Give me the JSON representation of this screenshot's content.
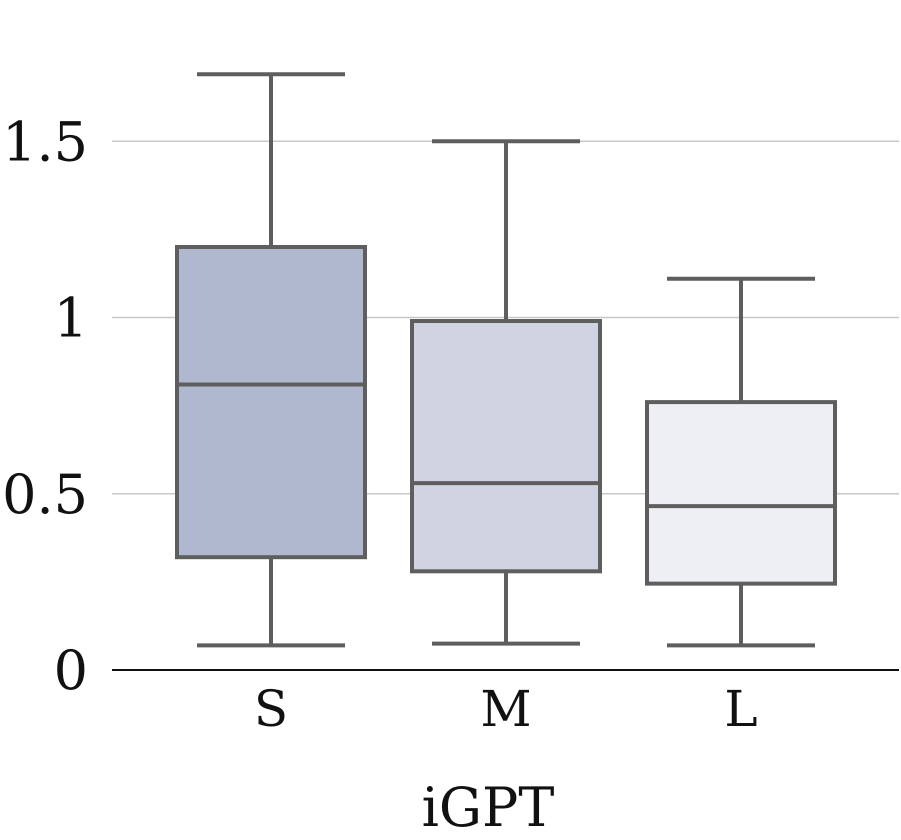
{
  "chart_data": {
    "type": "box",
    "title": "",
    "xlabel": "iGPT",
    "ylabel": "",
    "ylim": [
      0,
      1.8
    ],
    "yticks": [
      0,
      0.5,
      1,
      1.5
    ],
    "ytick_labels": [
      "0",
      "0.5",
      "1",
      "1.5"
    ],
    "grid": true,
    "categories": [
      "S",
      "M",
      "L"
    ],
    "boxes": [
      {
        "category": "S",
        "whisker_low": 0.07,
        "q1": 0.32,
        "median": 0.81,
        "q3": 1.2,
        "whisker_high": 1.69,
        "color": "#afb8cf"
      },
      {
        "category": "M",
        "whisker_low": 0.075,
        "q1": 0.28,
        "median": 0.53,
        "q3": 0.99,
        "whisker_high": 1.5,
        "color": "#d0d4e2"
      },
      {
        "category": "L",
        "whisker_low": 0.07,
        "q1": 0.245,
        "median": 0.465,
        "q3": 0.76,
        "whisker_high": 1.11,
        "color": "#eeeff4"
      }
    ],
    "colors": {
      "edge": "#5e5e5e",
      "grid": "#c8c8c8",
      "axis": "#111111"
    }
  }
}
